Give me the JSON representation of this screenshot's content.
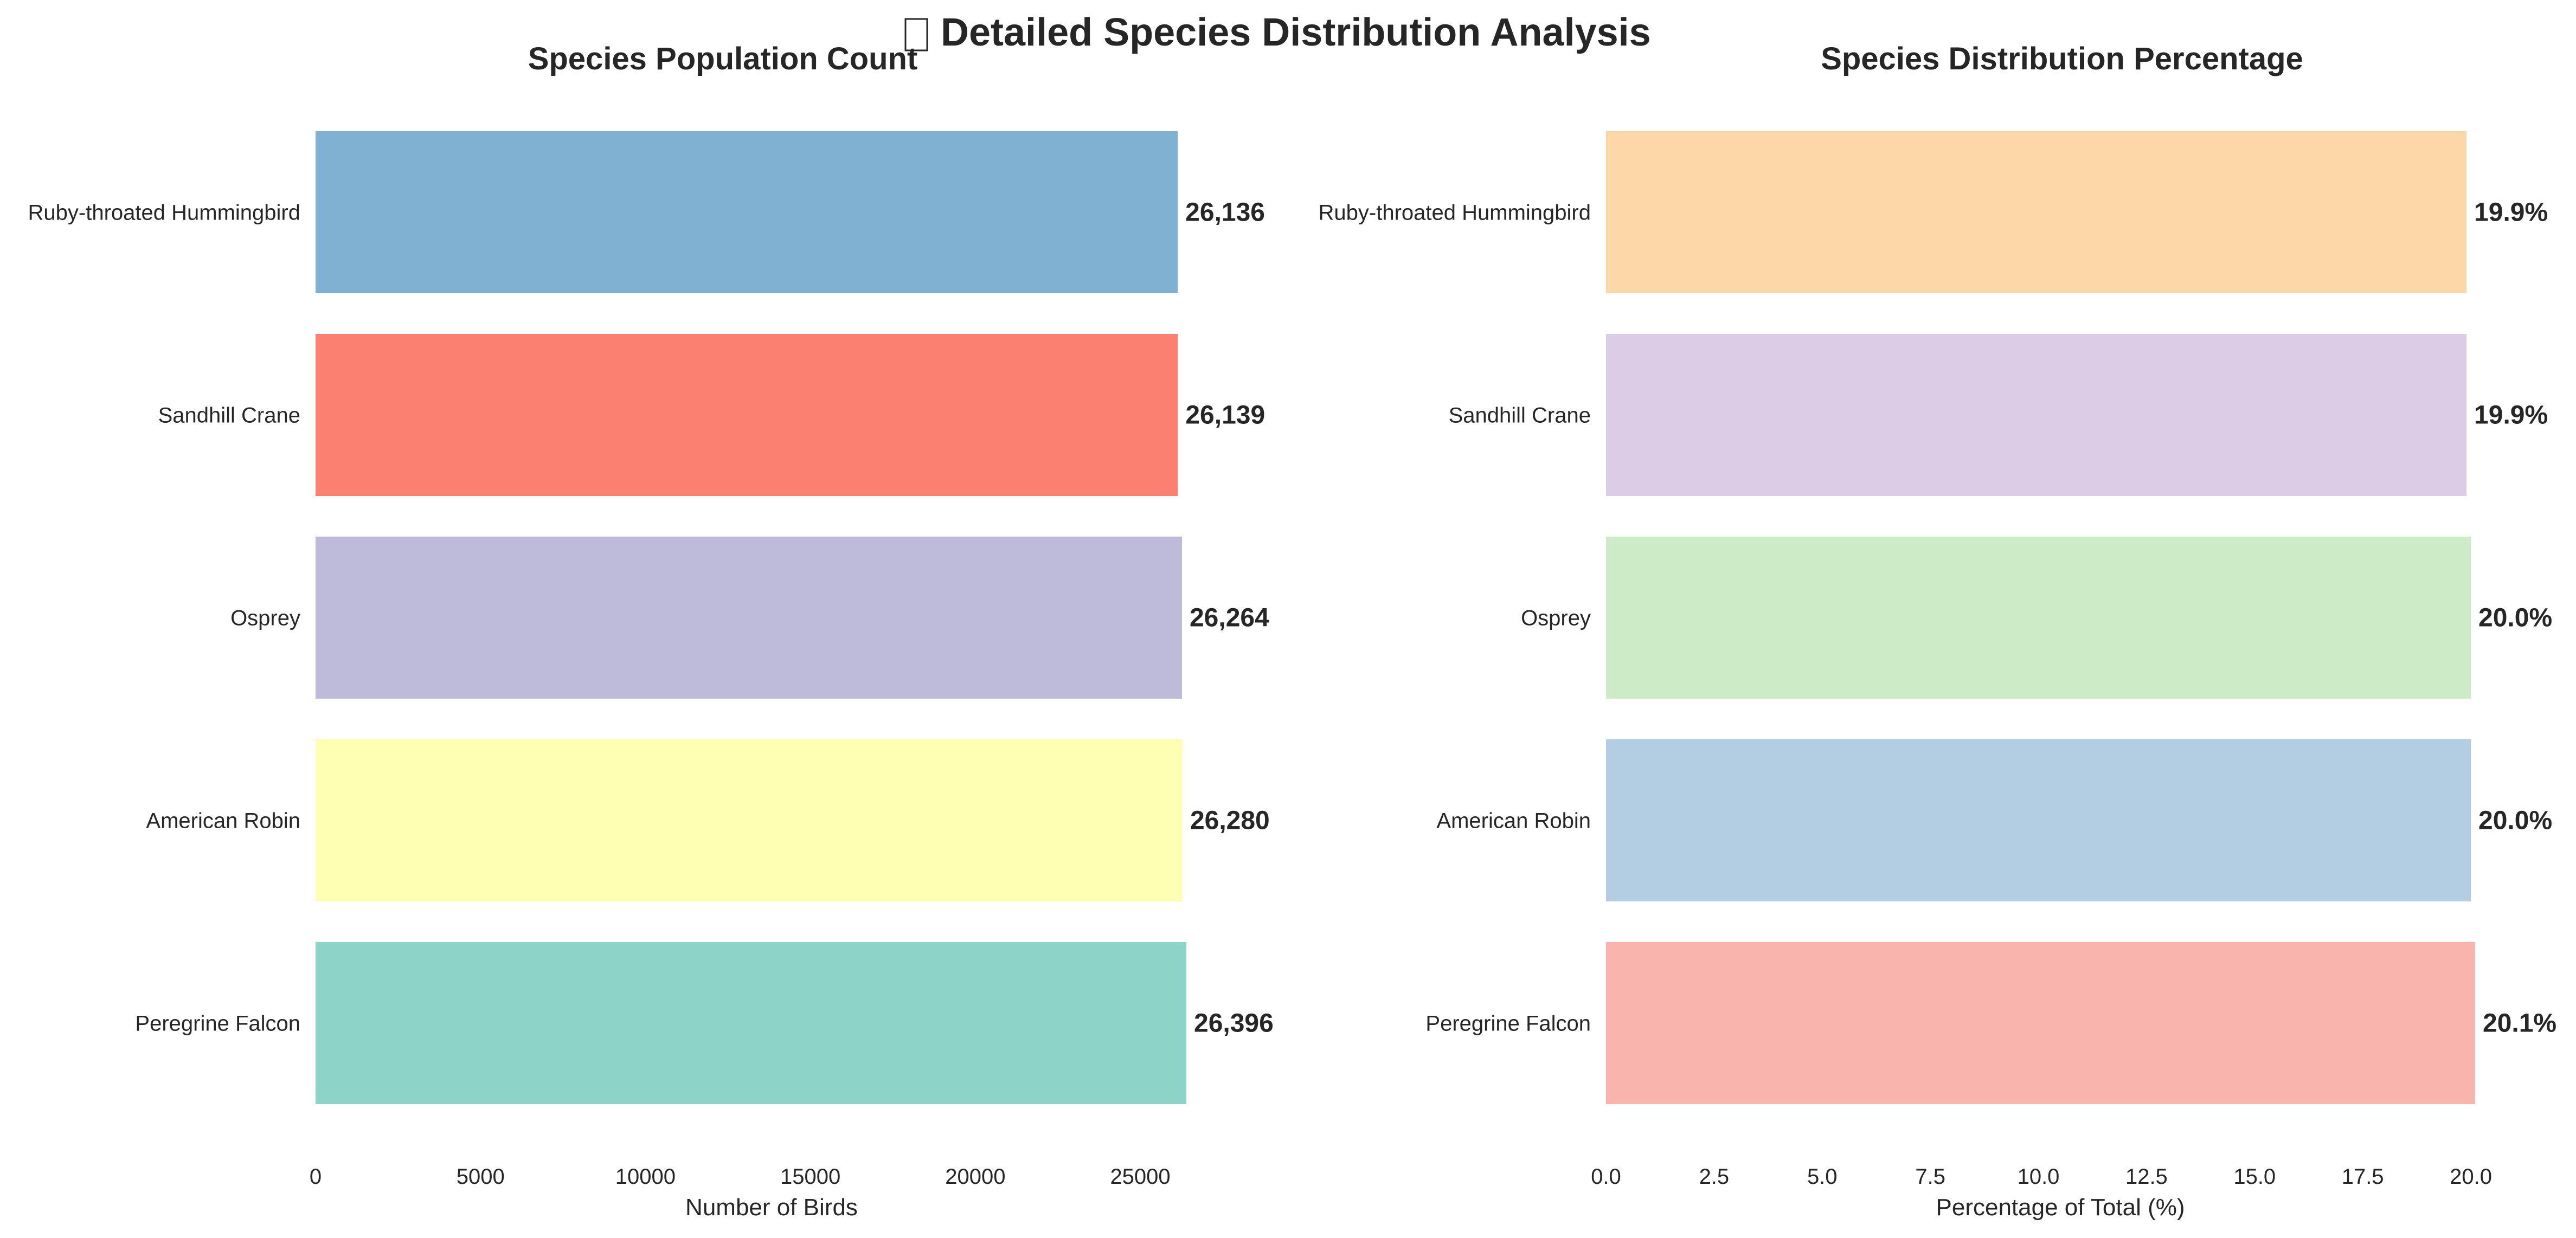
{
  "figure": {
    "title_icon": "bird-icon",
    "title": "Detailed Species Distribution Analysis"
  },
  "chart_data": [
    {
      "type": "bar",
      "orientation": "horizontal",
      "title": "Species Population Count",
      "xlabel": "Number of Birds",
      "ylabel": "",
      "xlim": [
        0,
        26396
      ],
      "xticks": [
        0,
        5000,
        10000,
        15000,
        20000,
        25000
      ],
      "xtick_labels": [
        "0",
        "5000",
        "10000",
        "15000",
        "20000",
        "25000"
      ],
      "grid": false,
      "categories": [
        "Ruby-throated Hummingbird",
        "Sandhill Crane",
        "Osprey",
        "American Robin",
        "Peregrine Falcon"
      ],
      "values": [
        26136,
        26139,
        26264,
        26280,
        26396
      ],
      "value_labels": [
        "26,136",
        "26,139",
        "26,264",
        "26,280",
        "26,396"
      ],
      "colors": [
        "#80b1d3",
        "#fb8072",
        "#bebada",
        "#ffffb3",
        "#8dd3c7"
      ]
    },
    {
      "type": "bar",
      "orientation": "horizontal",
      "title": "Species Distribution Percentage",
      "xlabel": "Percentage of Total (%)",
      "ylabel": "",
      "xlim": [
        0,
        20.1
      ],
      "xticks": [
        0,
        2.5,
        5,
        7.5,
        10,
        12.5,
        15,
        17.5,
        20
      ],
      "xtick_labels": [
        "0.0",
        "2.5",
        "5.0",
        "7.5",
        "10.0",
        "12.5",
        "15.0",
        "17.5",
        "20.0"
      ],
      "grid": false,
      "categories": [
        "Ruby-throated Hummingbird",
        "Sandhill Crane",
        "Osprey",
        "American Robin",
        "Peregrine Falcon"
      ],
      "values": [
        19.9,
        19.9,
        20.0,
        20.0,
        20.1
      ],
      "value_labels": [
        "19.9%",
        "19.9%",
        "20.0%",
        "20.0%",
        "20.1%"
      ],
      "colors": [
        "#fdd7a7",
        "#ddcce5",
        "#cdebc6",
        "#b3cde2",
        "#fab4ae"
      ]
    }
  ]
}
